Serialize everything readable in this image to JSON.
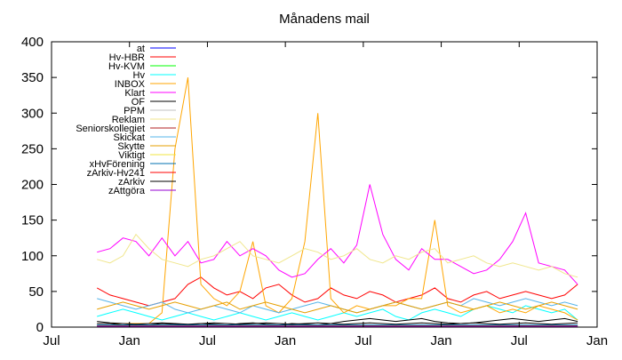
{
  "chart_data": {
    "type": "line",
    "title": "Månadens mail",
    "xlabel": "",
    "ylabel": "",
    "ylim": [
      0,
      400
    ],
    "yticks": [
      0,
      50,
      100,
      150,
      200,
      250,
      300,
      350,
      400
    ],
    "xlim_months": [
      0,
      42
    ],
    "xticks": [
      {
        "month": 0,
        "label": "Jul"
      },
      {
        "month": 6,
        "label": "Jan"
      },
      {
        "month": 12,
        "label": "Jul"
      },
      {
        "month": 18,
        "label": "Jan"
      },
      {
        "month": 24,
        "label": "Jul"
      },
      {
        "month": 30,
        "label": "Jan"
      },
      {
        "month": 36,
        "label": "Jul"
      },
      {
        "month": 42,
        "label": "Jan"
      }
    ],
    "legend_position": "top-left",
    "x": [
      3.5,
      4.5,
      5.5,
      6.5,
      7.5,
      8.5,
      9.5,
      10.5,
      11.5,
      12.5,
      13.5,
      14.5,
      15.5,
      16.5,
      17.5,
      18.5,
      19.5,
      20.5,
      21.5,
      22.5,
      23.5,
      24.5,
      25.5,
      26.5,
      27.5,
      28.5,
      29.5,
      30.5,
      31.5,
      32.5,
      33.5,
      34.5,
      35.5,
      36.5,
      37.5,
      38.5,
      39.5,
      40.5
    ],
    "series": [
      {
        "name": "at",
        "color": "#0000ff",
        "values": [
          2,
          2,
          1,
          2,
          1,
          2,
          1,
          1,
          2,
          1,
          1,
          2,
          1,
          1,
          2,
          1,
          1,
          1,
          2,
          1,
          1,
          1,
          2,
          1,
          1,
          1,
          1,
          2,
          1,
          1,
          1,
          1,
          2,
          1,
          1,
          1,
          1,
          1
        ]
      },
      {
        "name": "Hv-HBR",
        "color": "#ff0000",
        "values": [
          55,
          45,
          40,
          35,
          30,
          35,
          40,
          60,
          70,
          55,
          45,
          50,
          40,
          55,
          60,
          45,
          35,
          40,
          55,
          45,
          40,
          50,
          45,
          35,
          40,
          45,
          55,
          40,
          35,
          45,
          50,
          40,
          45,
          50,
          45,
          40,
          45,
          60
        ]
      },
      {
        "name": "Hv-KVM",
        "color": "#00ff00",
        "values": [
          1,
          1,
          1,
          1,
          1,
          1,
          1,
          1,
          1,
          1,
          1,
          1,
          1,
          1,
          1,
          1,
          1,
          1,
          1,
          1,
          1,
          1,
          1,
          1,
          1,
          1,
          1,
          1,
          1,
          1,
          1,
          1,
          1,
          1,
          1,
          1,
          1,
          1
        ]
      },
      {
        "name": "Hv",
        "color": "#00ffff",
        "values": [
          15,
          20,
          25,
          20,
          15,
          10,
          15,
          20,
          15,
          10,
          15,
          20,
          15,
          10,
          15,
          20,
          15,
          10,
          15,
          20,
          15,
          20,
          25,
          15,
          10,
          20,
          25,
          20,
          15,
          25,
          30,
          25,
          20,
          30,
          25,
          20,
          25,
          10
        ]
      },
      {
        "name": "INBOX",
        "color": "#ffa500",
        "values": [
          5,
          5,
          5,
          5,
          5,
          20,
          250,
          350,
          60,
          40,
          30,
          50,
          120,
          30,
          20,
          40,
          120,
          300,
          40,
          20,
          30,
          25,
          30,
          30,
          40,
          40,
          150,
          30,
          20,
          25,
          30,
          20,
          25,
          20,
          30,
          25,
          20,
          10
        ]
      },
      {
        "name": "Klart",
        "color": "#ff00ff",
        "values": [
          105,
          110,
          125,
          120,
          100,
          125,
          100,
          120,
          90,
          95,
          120,
          100,
          110,
          100,
          80,
          70,
          75,
          95,
          110,
          90,
          115,
          200,
          130,
          95,
          80,
          110,
          95,
          95,
          85,
          75,
          80,
          95,
          120,
          160,
          90,
          85,
          80,
          60
        ]
      },
      {
        "name": "OF",
        "color": "#000000",
        "values": [
          5,
          5,
          3,
          4,
          3,
          5,
          4,
          3,
          5,
          4,
          3,
          5,
          6,
          4,
          3,
          5,
          4,
          3,
          5,
          8,
          10,
          12,
          10,
          8,
          10,
          12,
          8,
          6,
          5,
          6,
          8,
          10,
          12,
          10,
          8,
          10,
          12,
          8
        ]
      },
      {
        "name": "PPM",
        "color": "#c0c0c0",
        "values": [
          0,
          0,
          0,
          0,
          0,
          0,
          0,
          0,
          0,
          0,
          0,
          0,
          0,
          0,
          0,
          0,
          0,
          0,
          0,
          0,
          0,
          0,
          0,
          0,
          0,
          0,
          0,
          0,
          0,
          0,
          0,
          0,
          0,
          0,
          0,
          0,
          0,
          0
        ]
      },
      {
        "name": "Reklam",
        "color": "#f0e68c",
        "values": [
          95,
          90,
          100,
          130,
          110,
          95,
          90,
          85,
          95,
          100,
          110,
          120,
          100,
          95,
          90,
          100,
          110,
          105,
          95,
          100,
          110,
          95,
          90,
          100,
          95,
          105,
          110,
          90,
          95,
          100,
          90,
          85,
          90,
          85,
          80,
          85,
          75,
          70
        ]
      },
      {
        "name": "Seniorskollegiet",
        "color": "#b22222",
        "values": [
          2,
          2,
          2,
          2,
          2,
          2,
          2,
          2,
          2,
          2,
          2,
          2,
          2,
          2,
          2,
          2,
          2,
          2,
          2,
          2,
          2,
          2,
          2,
          2,
          2,
          2,
          2,
          2,
          2,
          2,
          2,
          2,
          2,
          2,
          2,
          2,
          2,
          2
        ]
      },
      {
        "name": "Skickat",
        "color": "#56b4e9",
        "values": [
          40,
          35,
          30,
          25,
          30,
          35,
          25,
          20,
          25,
          30,
          25,
          20,
          30,
          25,
          20,
          25,
          30,
          35,
          30,
          25,
          20,
          25,
          30,
          35,
          30,
          25,
          30,
          35,
          30,
          40,
          35,
          30,
          35,
          40,
          35,
          30,
          35,
          30
        ]
      },
      {
        "name": "Skytte",
        "color": "#e69f00",
        "values": [
          25,
          30,
          35,
          30,
          25,
          30,
          35,
          30,
          25,
          30,
          35,
          25,
          30,
          35,
          30,
          25,
          20,
          25,
          30,
          25,
          20,
          25,
          30,
          35,
          30,
          25,
          30,
          35,
          30,
          25,
          30,
          35,
          30,
          25,
          30,
          35,
          30,
          25
        ]
      },
      {
        "name": "Viktigt",
        "color": "#f0e442",
        "values": [
          1,
          1,
          1,
          1,
          1,
          1,
          1,
          1,
          1,
          1,
          1,
          1,
          1,
          1,
          1,
          1,
          1,
          1,
          1,
          1,
          1,
          1,
          1,
          1,
          1,
          1,
          1,
          1,
          1,
          1,
          1,
          1,
          1,
          1,
          1,
          1,
          1,
          1
        ]
      },
      {
        "name": "xHvFörening",
        "color": "#0072b2",
        "values": [
          3,
          3,
          3,
          3,
          3,
          3,
          3,
          3,
          3,
          3,
          3,
          3,
          3,
          3,
          3,
          3,
          3,
          3,
          3,
          3,
          3,
          3,
          3,
          3,
          3,
          3,
          3,
          3,
          3,
          3,
          3,
          3,
          3,
          3,
          3,
          3,
          3,
          3
        ]
      },
      {
        "name": "zArkiv-Hv241",
        "color": "#ff0000",
        "values": [
          0,
          0,
          0,
          0,
          0,
          0,
          0,
          0,
          0,
          0,
          0,
          0,
          0,
          0,
          0,
          0,
          0,
          0,
          0,
          0,
          0,
          0,
          0,
          0,
          0,
          0,
          0,
          0,
          0,
          0,
          0,
          0,
          0,
          0,
          0,
          0,
          0,
          0
        ]
      },
      {
        "name": "zArkiv",
        "color": "#000000",
        "values": [
          8,
          6,
          5,
          4,
          5,
          6,
          5,
          4,
          5,
          6,
          5,
          4,
          5,
          6,
          5,
          4,
          5,
          6,
          5,
          4,
          5,
          6,
          5,
          4,
          5,
          6,
          5,
          4,
          5,
          6,
          5,
          4,
          5,
          6,
          5,
          4,
          5,
          6
        ]
      },
      {
        "name": "zAttgöra",
        "color": "#9400d3",
        "values": [
          1,
          1,
          1,
          1,
          1,
          1,
          1,
          1,
          1,
          1,
          1,
          1,
          1,
          1,
          1,
          1,
          1,
          1,
          1,
          1,
          1,
          1,
          1,
          1,
          1,
          1,
          1,
          1,
          1,
          1,
          1,
          1,
          1,
          1,
          1,
          1,
          1,
          1
        ]
      }
    ]
  }
}
